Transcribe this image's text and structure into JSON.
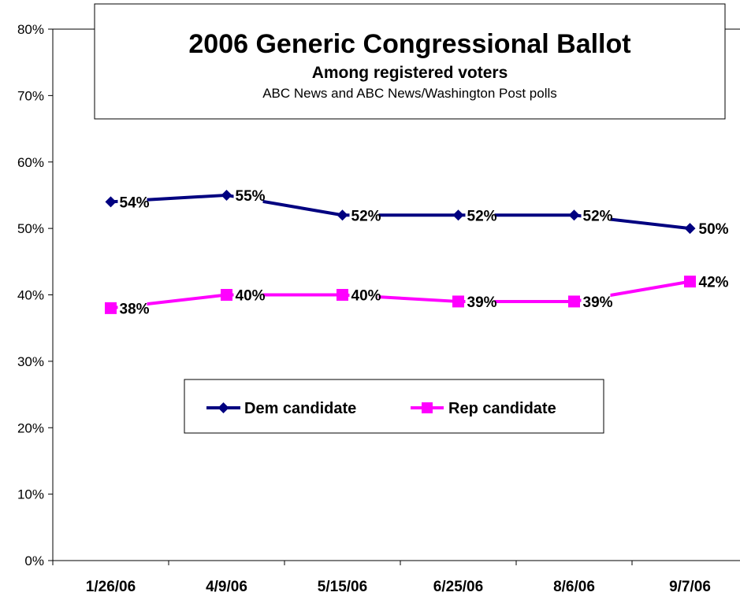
{
  "chart_data": {
    "type": "line",
    "title": "2006 Generic Congressional Ballot",
    "subtitle": "Among registered voters",
    "source": "ABC News and ABC News/Washington Post polls",
    "categories": [
      "1/26/06",
      "4/9/06",
      "5/15/06",
      "6/25/06",
      "8/6/06",
      "9/7/06"
    ],
    "ylim": [
      0,
      80
    ],
    "yticks": [
      0,
      10,
      20,
      30,
      40,
      50,
      60,
      70,
      80
    ],
    "ytick_labels": [
      "0%",
      "10%",
      "20%",
      "30%",
      "40%",
      "50%",
      "60%",
      "70%",
      "80%"
    ],
    "grid": false,
    "legend_position": "center",
    "series": [
      {
        "name": "Dem candidate",
        "values": [
          54,
          55,
          52,
          52,
          52,
          50
        ],
        "labels": [
          "54%",
          "55%",
          "52%",
          "52%",
          "52%",
          "50%"
        ],
        "color": "#000080",
        "marker": "diamond"
      },
      {
        "name": "Rep candidate",
        "values": [
          38,
          40,
          40,
          39,
          39,
          42
        ],
        "labels": [
          "38%",
          "40%",
          "40%",
          "39%",
          "39%",
          "42%"
        ],
        "color": "#FF00FF",
        "marker": "square"
      }
    ]
  }
}
